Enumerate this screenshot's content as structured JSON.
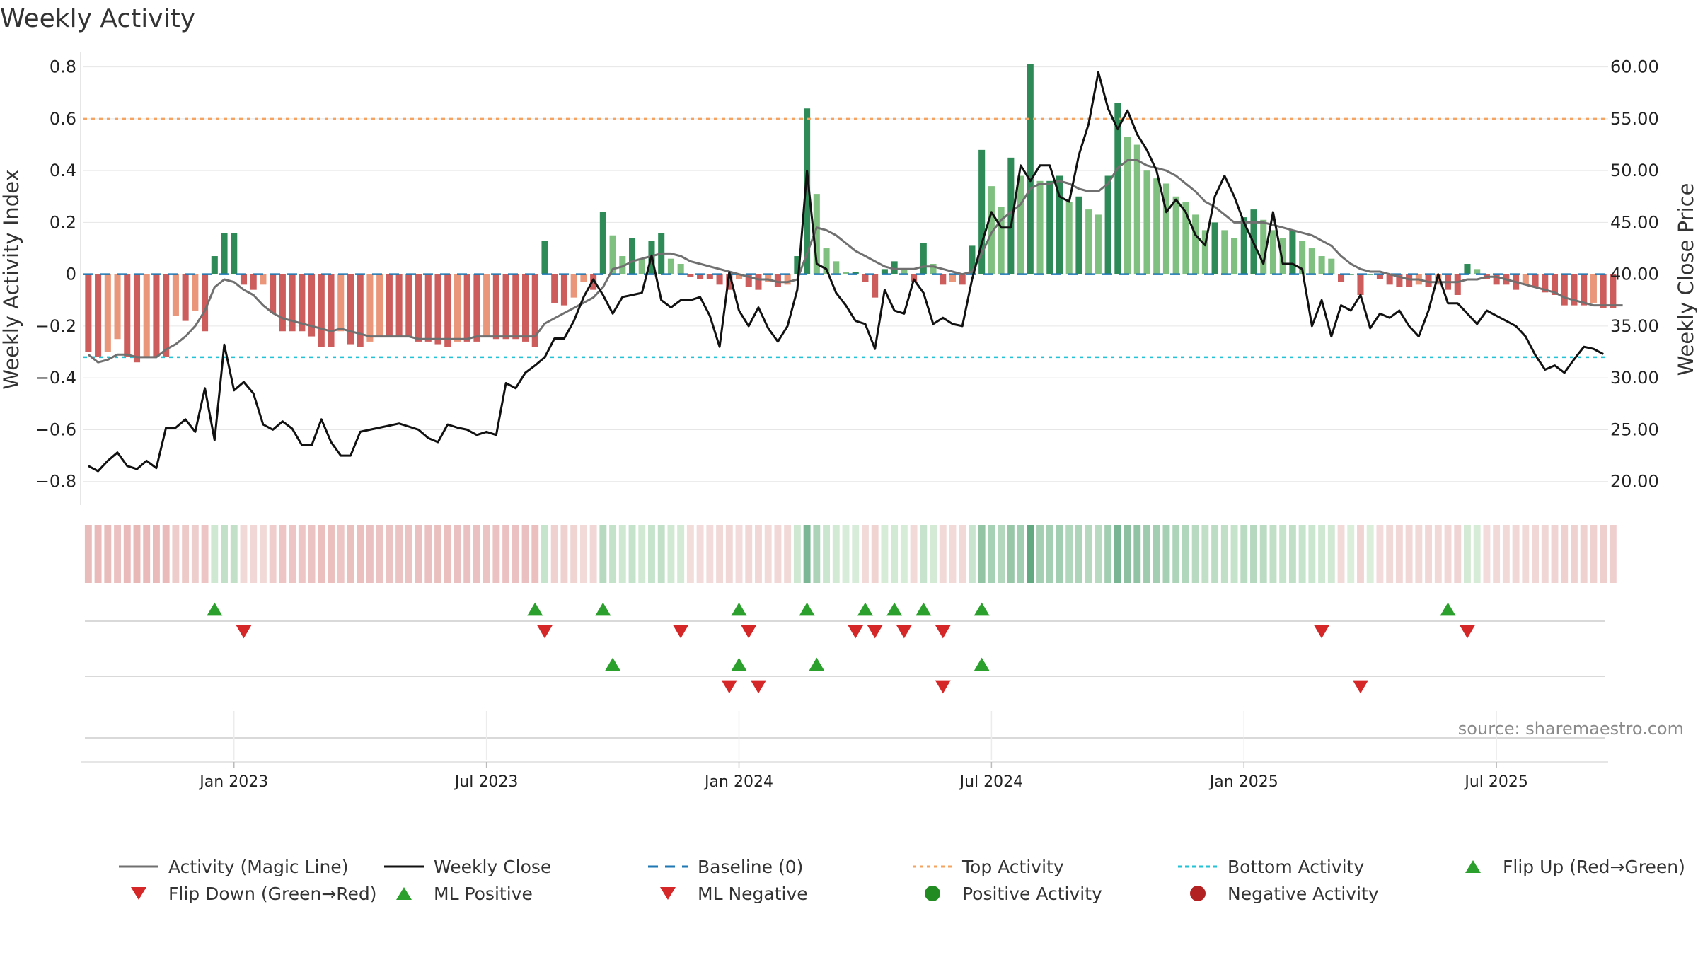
{
  "page": {
    "title": "Weekly Activity"
  },
  "chart_data": {
    "type": "bar",
    "title": "Weekly Activity",
    "ylabel": "Weekly Activity Index",
    "y2label": "Weekly Close Price",
    "ylim": [
      -0.88,
      0.84
    ],
    "y2lim": [
      18.0,
      61.0
    ],
    "yticks": [
      0.8,
      0.6,
      0.4,
      0.2,
      0,
      -0.2,
      -0.4,
      -0.6,
      -0.8
    ],
    "yticklabels": [
      "0.8",
      "0.6",
      "0.4",
      "0.2",
      "0",
      "−0.2",
      "−0.4",
      "−0.6",
      "−0.8"
    ],
    "y2ticks": [
      60,
      55,
      50,
      45,
      40,
      35,
      30,
      25,
      20
    ],
    "y2ticklabels": [
      "60.00",
      "55.00",
      "50.00",
      "45.00",
      "40.00",
      "35.00",
      "30.00",
      "25.00",
      "20.00"
    ],
    "xtick_labels": [
      "Jan 2023",
      "Jul 2023",
      "Jan 2024",
      "Jul 2024",
      "Jan 2025",
      "Jul 2025"
    ],
    "xtick_weeks": [
      15,
      41,
      67,
      93,
      119,
      145
    ],
    "weeks": 157,
    "top_activity": 0.6,
    "bottom_activity": -0.32,
    "baseline": 0,
    "activity": [
      -0.3,
      -0.32,
      -0.3,
      -0.25,
      -0.32,
      -0.34,
      -0.32,
      -0.32,
      -0.32,
      -0.16,
      -0.18,
      -0.14,
      -0.22,
      0.07,
      0.16,
      0.16,
      -0.04,
      -0.06,
      -0.04,
      -0.15,
      -0.22,
      -0.22,
      -0.22,
      -0.24,
      -0.28,
      -0.28,
      -0.22,
      -0.27,
      -0.28,
      -0.26,
      -0.24,
      -0.24,
      -0.24,
      -0.24,
      -0.26,
      -0.26,
      -0.27,
      -0.28,
      -0.26,
      -0.26,
      -0.26,
      -0.24,
      -0.25,
      -0.25,
      -0.25,
      -0.26,
      -0.28,
      0.13,
      -0.11,
      -0.12,
      -0.09,
      -0.03,
      -0.06,
      0.24,
      0.15,
      0.07,
      0.14,
      0.06,
      0.13,
      0.16,
      0.06,
      0.04,
      -0.01,
      -0.02,
      -0.02,
      -0.04,
      -0.06,
      -0.02,
      -0.05,
      -0.06,
      -0.03,
      -0.05,
      -0.04,
      0.07,
      0.64,
      0.31,
      0.1,
      0.05,
      0.01,
      0.01,
      -0.03,
      -0.09,
      0.02,
      0.05,
      0.02,
      -0.03,
      0.12,
      0.04,
      -0.04,
      -0.03,
      -0.04,
      0.11,
      0.48,
      0.34,
      0.26,
      0.45,
      0.38,
      0.81,
      0.36,
      0.36,
      0.38,
      0.28,
      0.3,
      0.25,
      0.23,
      0.38,
      0.66,
      0.53,
      0.5,
      0.4,
      0.37,
      0.35,
      0.3,
      0.28,
      0.23,
      0.17,
      0.2,
      0.17,
      0.14,
      0.22,
      0.25,
      0.21,
      0.17,
      0.14,
      0.17,
      0.13,
      0.1,
      0.07,
      0.06,
      -0.03,
      0.0,
      -0.08,
      0.0,
      -0.02,
      -0.04,
      -0.05,
      -0.05,
      -0.04,
      -0.05,
      -0.04,
      -0.06,
      -0.08,
      0.04,
      0.02,
      -0.02,
      -0.04,
      -0.04,
      -0.06,
      -0.04,
      -0.05,
      -0.07,
      -0.08,
      -0.12,
      -0.12,
      -0.12,
      -0.11,
      -0.13,
      -0.13
    ],
    "magic_line": [
      -0.31,
      -0.34,
      -0.33,
      -0.31,
      -0.31,
      -0.32,
      -0.32,
      -0.32,
      -0.29,
      -0.27,
      -0.24,
      -0.2,
      -0.14,
      -0.05,
      -0.02,
      -0.03,
      -0.06,
      -0.08,
      -0.12,
      -0.15,
      -0.17,
      -0.18,
      -0.19,
      -0.2,
      -0.21,
      -0.22,
      -0.21,
      -0.22,
      -0.23,
      -0.24,
      -0.24,
      -0.24,
      -0.24,
      -0.24,
      -0.25,
      -0.25,
      -0.25,
      -0.25,
      -0.25,
      -0.25,
      -0.24,
      -0.24,
      -0.24,
      -0.24,
      -0.24,
      -0.24,
      -0.24,
      -0.19,
      -0.17,
      -0.15,
      -0.13,
      -0.11,
      -0.09,
      -0.05,
      0.02,
      0.03,
      0.05,
      0.06,
      0.07,
      0.08,
      0.08,
      0.07,
      0.05,
      0.04,
      0.03,
      0.02,
      0.01,
      0.0,
      -0.01,
      -0.02,
      -0.02,
      -0.03,
      -0.03,
      -0.02,
      0.08,
      0.18,
      0.17,
      0.15,
      0.12,
      0.09,
      0.07,
      0.05,
      0.03,
      0.02,
      0.02,
      0.02,
      0.03,
      0.03,
      0.02,
      0.01,
      0.0,
      0.01,
      0.08,
      0.16,
      0.21,
      0.24,
      0.27,
      0.33,
      0.35,
      0.35,
      0.36,
      0.35,
      0.33,
      0.32,
      0.32,
      0.35,
      0.41,
      0.44,
      0.44,
      0.42,
      0.41,
      0.4,
      0.38,
      0.35,
      0.32,
      0.28,
      0.26,
      0.23,
      0.2,
      0.2,
      0.2,
      0.2,
      0.19,
      0.18,
      0.17,
      0.16,
      0.15,
      0.13,
      0.11,
      0.07,
      0.04,
      0.02,
      0.01,
      0.01,
      0.0,
      -0.01,
      -0.02,
      -0.02,
      -0.03,
      -0.03,
      -0.03,
      -0.03,
      -0.02,
      -0.02,
      -0.01,
      -0.01,
      -0.02,
      -0.03,
      -0.04,
      -0.05,
      -0.06,
      -0.07,
      -0.09,
      -0.1,
      -0.11,
      -0.12,
      -0.12,
      -0.12,
      -0.12
    ],
    "weekly_close": [
      21.5,
      21.0,
      22.0,
      22.8,
      21.5,
      21.2,
      22.0,
      21.3,
      25.2,
      25.2,
      26.0,
      24.8,
      29.0,
      24.0,
      33.2,
      28.8,
      29.6,
      28.5,
      25.5,
      25.0,
      25.8,
      25.1,
      23.5,
      23.5,
      26.0,
      23.8,
      22.5,
      22.5,
      24.8,
      25.0,
      25.2,
      25.4,
      25.6,
      25.3,
      25.0,
      24.2,
      23.8,
      25.5,
      25.2,
      25.0,
      24.5,
      24.8,
      24.5,
      29.5,
      29.0,
      30.5,
      31.2,
      32.0,
      33.8,
      33.8,
      35.5,
      37.8,
      39.5,
      38.0,
      36.2,
      37.8,
      38.0,
      38.2,
      41.8,
      37.5,
      36.8,
      37.5,
      37.5,
      37.8,
      36.0,
      33.0,
      40.2,
      36.5,
      35.0,
      36.8,
      34.8,
      33.5,
      35.0,
      38.5,
      50.0,
      41.0,
      40.5,
      38.2,
      37.0,
      35.5,
      35.2,
      32.8,
      38.5,
      36.5,
      36.2,
      39.5,
      38.2,
      35.2,
      35.8,
      35.2,
      35.0,
      39.5,
      43.0,
      46.0,
      44.5,
      44.5,
      50.5,
      49.0,
      50.5,
      50.5,
      47.5,
      47.0,
      51.5,
      54.5,
      59.5,
      56.0,
      54.0,
      55.8,
      53.5,
      52.0,
      50.0,
      46.0,
      47.2,
      46.0,
      43.8,
      42.8,
      47.5,
      49.5,
      47.5,
      45.0,
      43.0,
      41.0,
      46.0,
      41.0,
      41.0,
      40.5,
      35.0,
      37.5,
      34.0,
      37.0,
      36.5,
      38.0,
      34.8,
      36.2,
      35.8,
      36.5,
      35.0,
      34.0,
      36.5,
      40.0,
      37.2,
      37.2,
      36.2,
      35.2,
      36.5,
      36.0,
      35.5,
      35.0,
      34.0,
      32.2,
      30.8,
      31.2,
      30.5,
      31.8,
      33.0,
      32.8,
      32.3
    ],
    "flip_up_weeks": [
      13,
      46,
      53,
      67,
      74,
      80,
      83,
      86,
      92,
      140
    ],
    "flip_down_weeks": [
      16,
      47,
      61,
      68,
      79,
      81,
      84,
      88,
      127,
      142
    ],
    "ml_positive_weeks": [
      54,
      67,
      75,
      92
    ],
    "ml_negative_weeks": [
      66,
      69,
      88,
      131
    ],
    "legend": [
      {
        "key": "magic",
        "label": "Activity (Magic Line)"
      },
      {
        "key": "close",
        "label": "Weekly Close"
      },
      {
        "key": "baseline",
        "label": "Baseline (0)"
      },
      {
        "key": "top",
        "label": "Top Activity"
      },
      {
        "key": "bottom",
        "label": "Bottom Activity"
      },
      {
        "key": "flipup",
        "label": "Flip Up (Red→Green)"
      },
      {
        "key": "flipdown",
        "label": "Flip Down (Green→Red)"
      },
      {
        "key": "mlpos",
        "label": "ML Positive"
      },
      {
        "key": "mlneg",
        "label": "ML Negative"
      },
      {
        "key": "posact",
        "label": "Positive Activity"
      },
      {
        "key": "negact",
        "label": "Negative Activity"
      }
    ],
    "source": "source: sharemaestro.com"
  },
  "colors": {
    "pos_strong": "#2e8b57",
    "pos_light": "#7fbf7f",
    "neg_strong": "#cd5c5c",
    "neg_light": "#e9967a",
    "magic_line": "#707070",
    "close_line": "#111111",
    "baseline": "#1f77b4",
    "top": "#f4a460",
    "bottom": "#22c3d6",
    "marker_up": "#2ca02c",
    "marker_down": "#d62728",
    "pos_dot": "#228b22",
    "neg_dot": "#b22222"
  }
}
